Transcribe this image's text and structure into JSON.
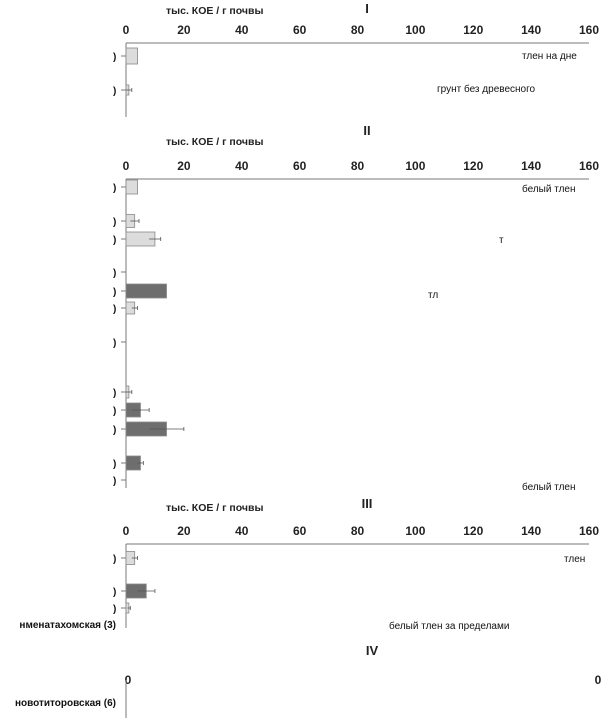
{
  "chart_data": [
    {
      "type": "bar",
      "orientation": "horizontal",
      "panel": "I",
      "xlabel": "тыс. КОЕ / г почвы",
      "xlim": [
        0,
        160
      ],
      "ticks": [
        0,
        20,
        40,
        60,
        80,
        100,
        120,
        140,
        160
      ],
      "bars": [
        {
          "value": 4,
          "error": 0,
          "color": "light"
        },
        {
          "value": 1,
          "error": 1,
          "color": "light"
        }
      ],
      "annotations": [
        "тлен на дне",
        "грунт без древесного"
      ]
    },
    {
      "type": "bar",
      "orientation": "horizontal",
      "panel": "II",
      "xlabel": "тыс. КОЕ / г почвы",
      "xlim": [
        0,
        160
      ],
      "ticks": [
        0,
        20,
        40,
        60,
        80,
        100,
        120,
        140,
        160
      ],
      "bars": [
        {
          "value": 4,
          "error": 0,
          "color": "light"
        },
        {
          "value": 3,
          "error": 1.5,
          "color": "light"
        },
        {
          "value": 10,
          "error": 2,
          "color": "light"
        },
        {
          "value": 0,
          "error": 0,
          "color": "light"
        },
        {
          "value": 14,
          "error": 0,
          "color": "dark"
        },
        {
          "value": 3,
          "error": 1,
          "color": "light"
        },
        {
          "value": 0,
          "error": 0,
          "color": "light"
        },
        {
          "value": 1,
          "error": 1,
          "color": "light"
        },
        {
          "value": 5,
          "error": 3,
          "color": "dark"
        },
        {
          "value": 14,
          "error": 6,
          "color": "dark"
        },
        {
          "value": 5,
          "error": 1,
          "color": "dark"
        },
        {
          "value": 0,
          "error": 0,
          "color": "light"
        }
      ],
      "annotations": [
        "белый тлен",
        "т",
        "тл",
        "белый тлен"
      ]
    },
    {
      "type": "bar",
      "orientation": "horizontal",
      "panel": "III",
      "xlabel": "тыс. КОЕ / г почвы",
      "xlim": [
        0,
        160
      ],
      "ticks": [
        0,
        20,
        40,
        60,
        80,
        100,
        120,
        140,
        160
      ],
      "bars": [
        {
          "value": 3,
          "error": 1,
          "color": "light"
        },
        {
          "value": 7,
          "error": 3,
          "color": "dark"
        },
        {
          "value": 1,
          "error": 0.5,
          "color": "light"
        }
      ],
      "row_labels": [
        "нменатахомская (3)"
      ],
      "annotations": [
        "тлен",
        "белый тлен за пределами"
      ]
    },
    {
      "type": "bar",
      "orientation": "horizontal",
      "panel": "IV",
      "ticks": [
        "0",
        "0"
      ],
      "bars": [],
      "row_labels": [
        "новотиторовская (6)"
      ]
    }
  ],
  "colors": {
    "light_bar": "#dcdcdc",
    "dark_bar": "#6e6e6e",
    "bar_stroke": "#8a8a8a",
    "axis": "#7a7a7a",
    "text": "#222222"
  }
}
